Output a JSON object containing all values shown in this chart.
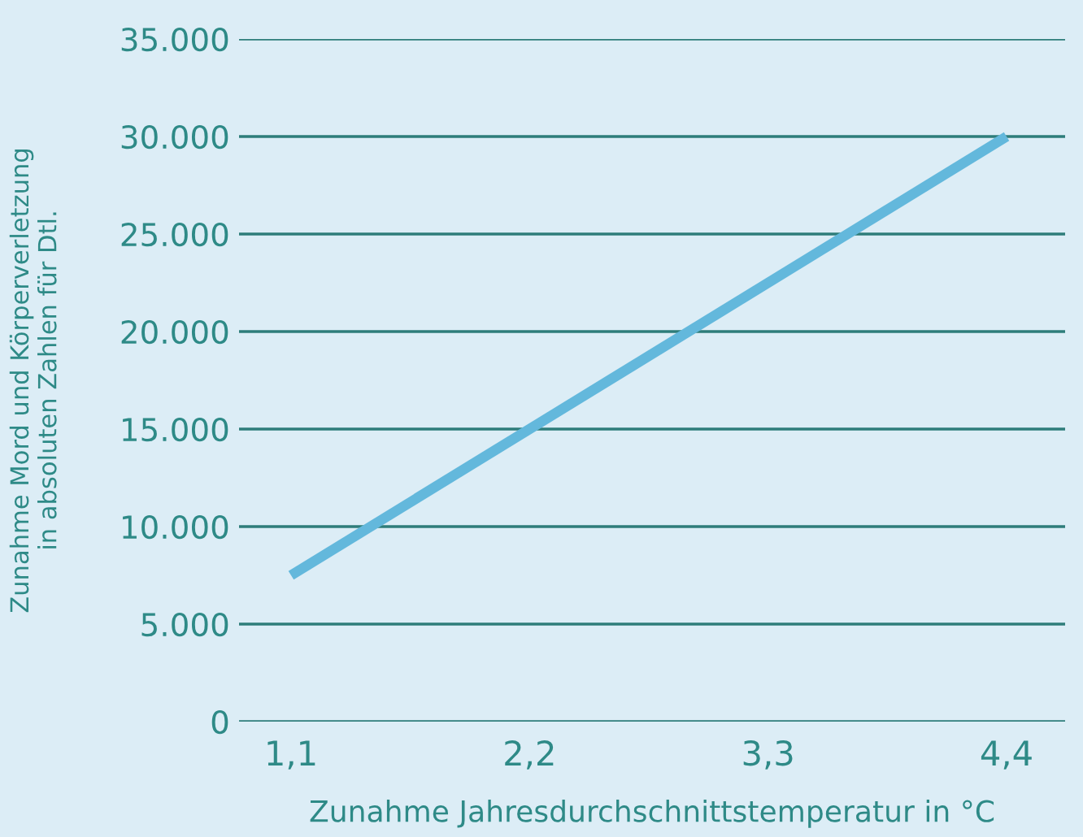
{
  "chart_data": {
    "type": "line",
    "xlabel": "Zunahme Jahresdurchschnittstemperatur in °C",
    "ylabel": "Zunahme Mord und Körperverletzung\nin absoluten Zahlen für Dtl.",
    "series": [
      {
        "color": "#63b8dc",
        "x": [
          1.1,
          4.4
        ],
        "values": [
          7500,
          30000
        ]
      }
    ],
    "xlim": [
      0.86,
      4.67
    ],
    "xticks": [
      {
        "value": 1.1,
        "label": "1,1"
      },
      {
        "value": 2.2,
        "label": "2,2"
      },
      {
        "value": 3.3,
        "label": "3,3"
      },
      {
        "value": 4.4,
        "label": "4,4"
      }
    ],
    "ylim": [
      0,
      35000
    ],
    "yticks": [
      {
        "value": 0,
        "label": "0"
      },
      {
        "value": 5000,
        "label": "5.000"
      },
      {
        "value": 10000,
        "label": "10.000"
      },
      {
        "value": 15000,
        "label": "15.000"
      },
      {
        "value": 20000,
        "label": "20.000"
      },
      {
        "value": 25000,
        "label": "25.000"
      },
      {
        "value": 30000,
        "label": "30.000"
      },
      {
        "value": 35000,
        "label": "35.000"
      }
    ],
    "grid": "y",
    "line_style": "solid"
  }
}
